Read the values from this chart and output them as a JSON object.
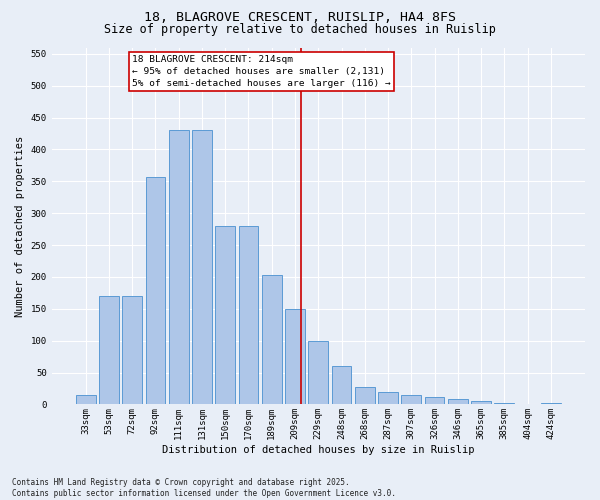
{
  "title": "18, BLAGROVE CRESCENT, RUISLIP, HA4 8FS",
  "subtitle": "Size of property relative to detached houses in Ruislip",
  "xlabel": "Distribution of detached houses by size in Ruislip",
  "ylabel": "Number of detached properties",
  "categories": [
    "33sqm",
    "53sqm",
    "72sqm",
    "92sqm",
    "111sqm",
    "131sqm",
    "150sqm",
    "170sqm",
    "189sqm",
    "209sqm",
    "229sqm",
    "248sqm",
    "268sqm",
    "287sqm",
    "307sqm",
    "326sqm",
    "346sqm",
    "365sqm",
    "385sqm",
    "404sqm",
    "424sqm"
  ],
  "values": [
    15,
    170,
    170,
    357,
    430,
    430,
    280,
    280,
    203,
    150,
    100,
    60,
    28,
    20,
    15,
    12,
    8,
    5,
    3,
    1,
    3
  ],
  "bar_color": "#aec6e8",
  "bar_edge_color": "#5b9bd5",
  "background_color": "#e8eef7",
  "grid_color": "#ffffff",
  "vline_color": "#cc0000",
  "annotation_text": "18 BLAGROVE CRESCENT: 214sqm\n← 95% of detached houses are smaller (2,131)\n5% of semi-detached houses are larger (116) →",
  "annotation_box_color": "#cc0000",
  "ylim": [
    0,
    560
  ],
  "yticks": [
    0,
    50,
    100,
    150,
    200,
    250,
    300,
    350,
    400,
    450,
    500,
    550
  ],
  "footnote": "Contains HM Land Registry data © Crown copyright and database right 2025.\nContains public sector information licensed under the Open Government Licence v3.0.",
  "title_fontsize": 9.5,
  "subtitle_fontsize": 8.5,
  "axis_label_fontsize": 7.5,
  "tick_fontsize": 6.5,
  "annotation_fontsize": 6.8,
  "footnote_fontsize": 5.5
}
